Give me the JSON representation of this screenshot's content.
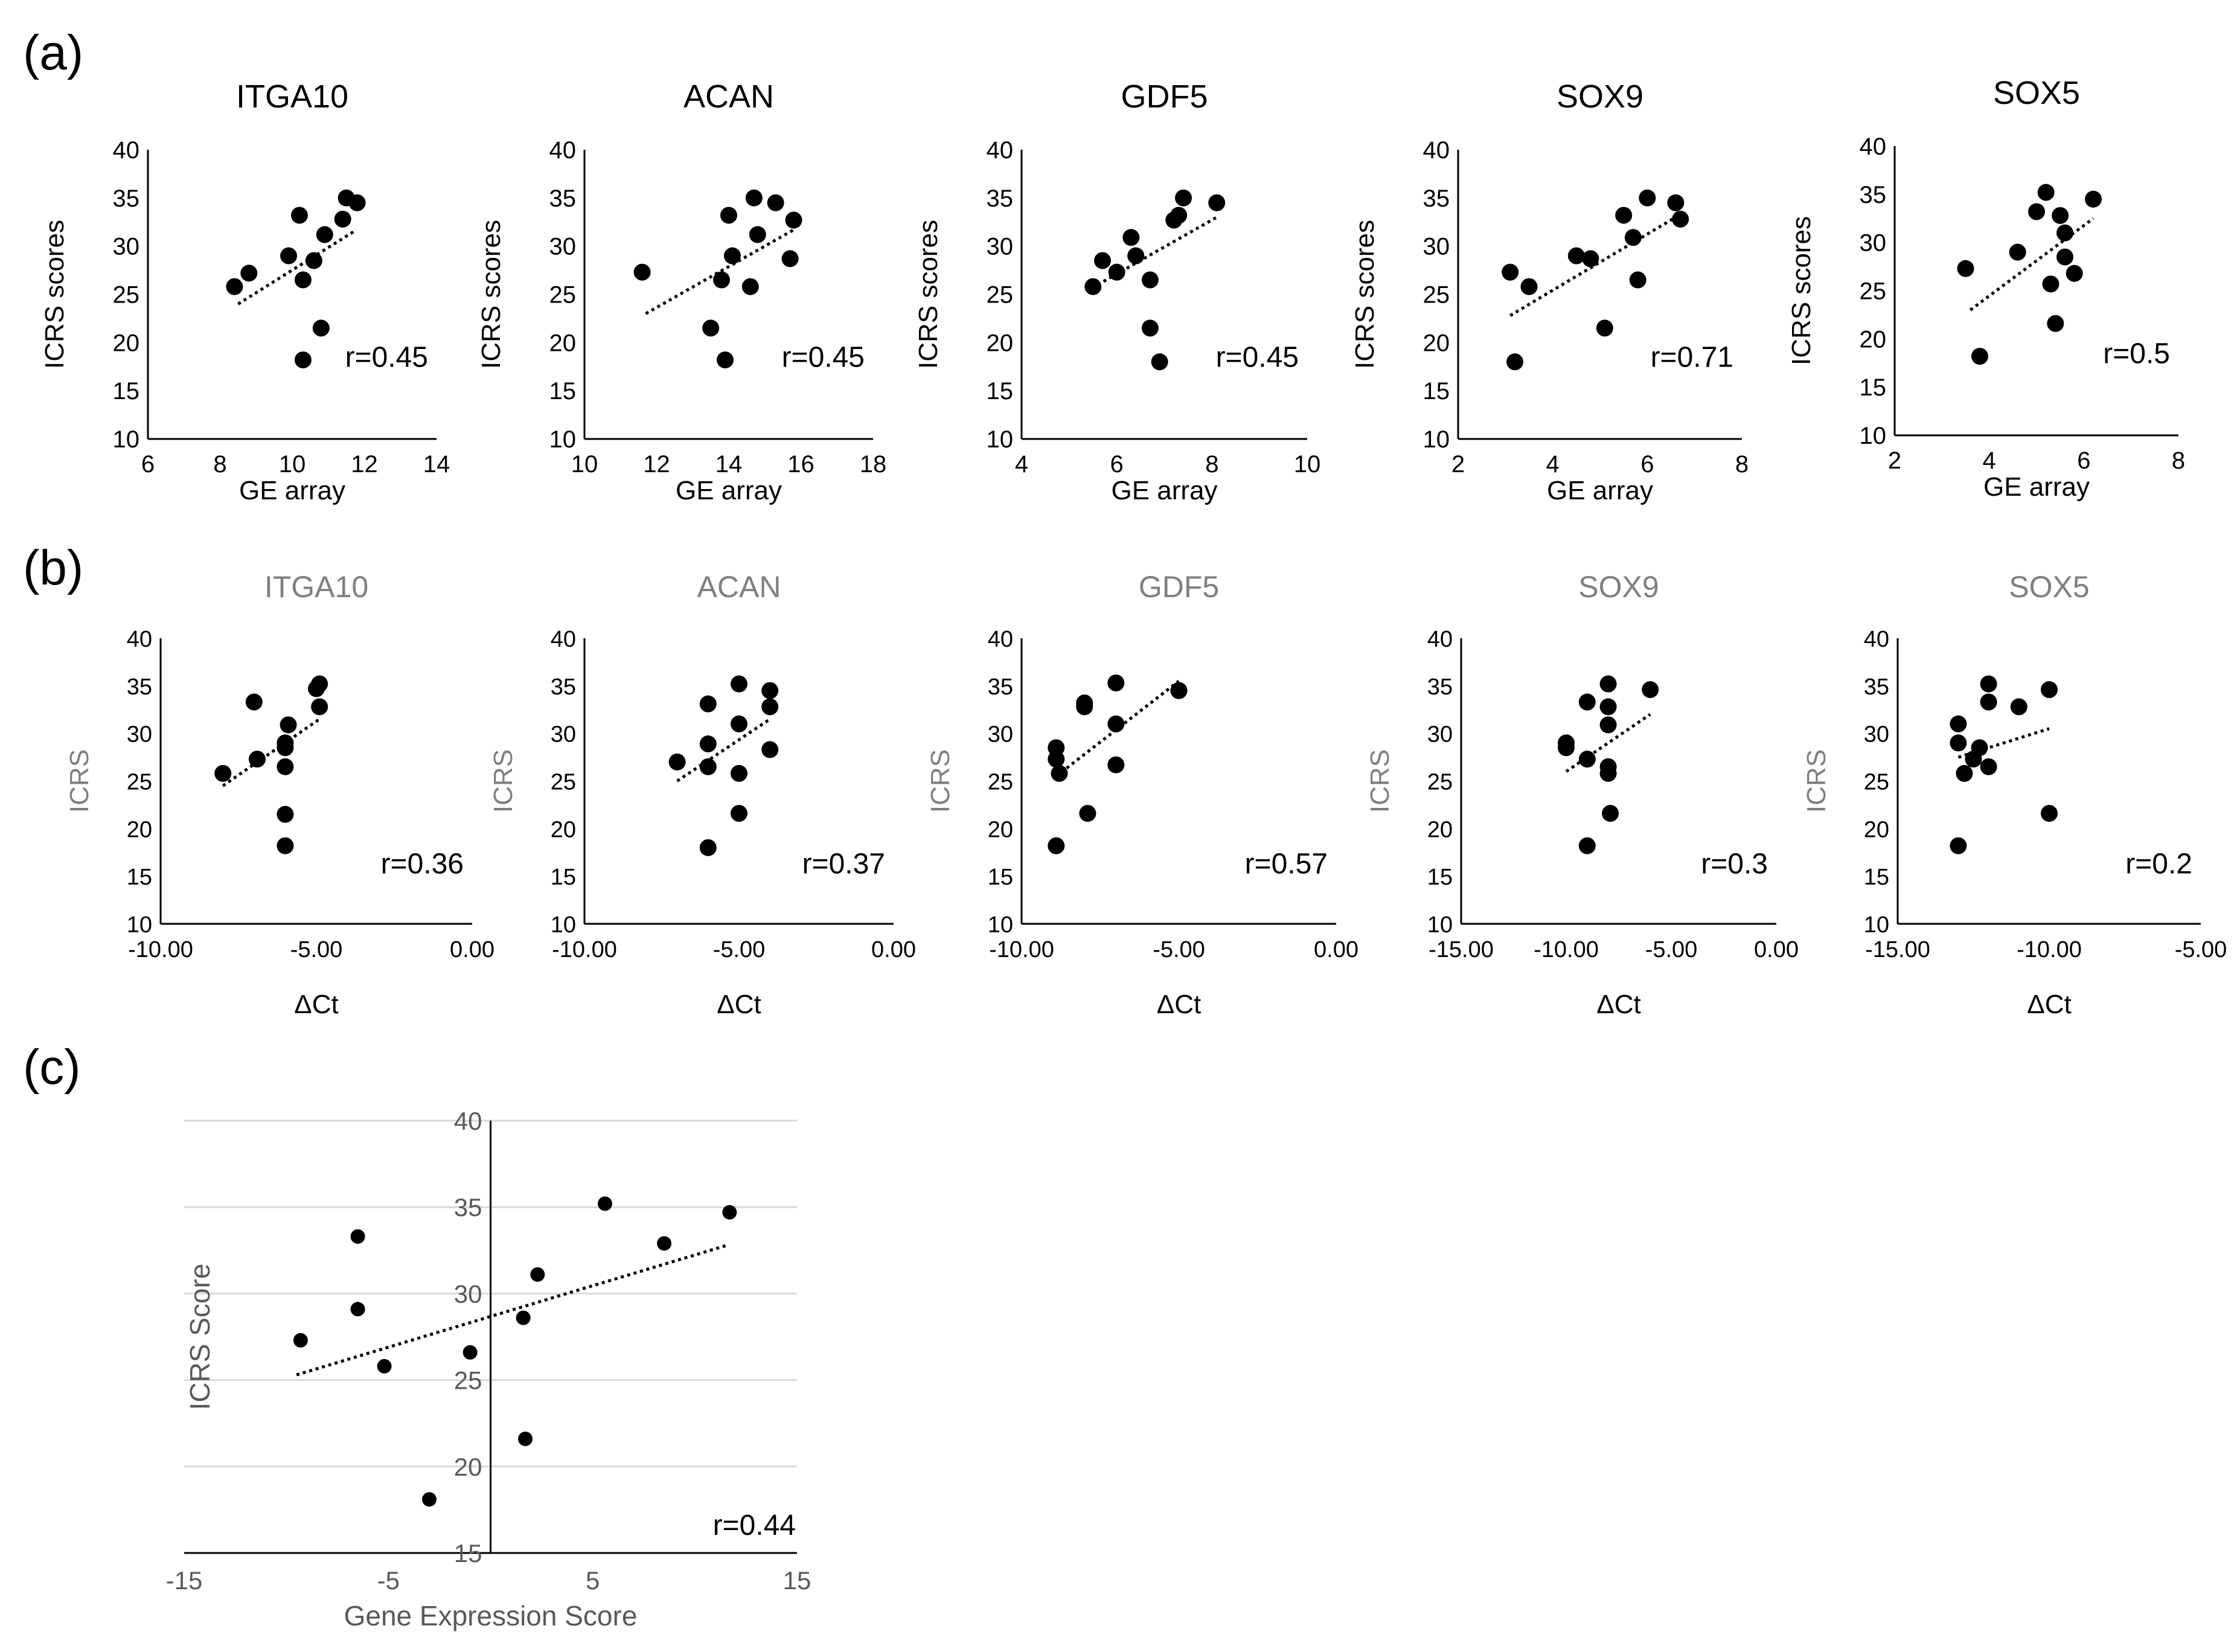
{
  "chart_data": [
    {
      "type": "scatter",
      "panel": "(a)",
      "title": "ITGA10",
      "xlabel": "GE array",
      "ylabel": "ICRS scores",
      "xlim": [
        6,
        14
      ],
      "ylim": [
        10,
        40
      ],
      "xticks": [
        "6",
        "8",
        "10",
        "12",
        "14"
      ],
      "yticks": [
        "10",
        "15",
        "20",
        "25",
        "30",
        "35",
        "40"
      ],
      "annotation": "r=0.45",
      "x": [
        8.4,
        8.8,
        10.2,
        10.3,
        9.9,
        10.6,
        10.9,
        11.4,
        11.5,
        11.8,
        10.8,
        10.3
      ],
      "y": [
        25.8,
        27.2,
        33.2,
        26.5,
        29.0,
        28.5,
        31.2,
        32.8,
        35.0,
        34.5,
        21.5,
        18.2
      ],
      "trend": [
        [
          8.5,
          24.0
        ],
        [
          11.7,
          31.5
        ]
      ]
    },
    {
      "type": "scatter",
      "panel": "(a)",
      "title": "ACAN",
      "xlabel": "GE array",
      "ylabel": "ICRS scores",
      "xlim": [
        10,
        18
      ],
      "ylim": [
        10,
        40
      ],
      "xticks": [
        "10",
        "12",
        "14",
        "16",
        "18"
      ],
      "yticks": [
        "10",
        "15",
        "20",
        "25",
        "30",
        "35",
        "40"
      ],
      "annotation": "r=0.45",
      "x": [
        11.6,
        13.5,
        13.8,
        14.0,
        14.1,
        14.6,
        14.7,
        14.8,
        15.3,
        15.7,
        15.8,
        13.9
      ],
      "y": [
        27.3,
        21.5,
        26.5,
        33.2,
        29.0,
        25.8,
        35.0,
        31.2,
        34.5,
        28.7,
        32.7,
        18.2
      ],
      "trend": [
        [
          11.7,
          23.0
        ],
        [
          15.8,
          31.7
        ]
      ]
    },
    {
      "type": "scatter",
      "panel": "(a)",
      "title": "GDF5",
      "xlabel": "GE array",
      "ylabel": "ICRS scores",
      "xlim": [
        4,
        10
      ],
      "ylim": [
        10,
        40
      ],
      "xticks": [
        "4",
        "6",
        "8",
        "10"
      ],
      "yticks": [
        "10",
        "15",
        "20",
        "25",
        "30",
        "35",
        "40"
      ],
      "annotation": "r=0.45",
      "x": [
        5.5,
        5.7,
        6.0,
        6.3,
        6.4,
        6.7,
        6.7,
        6.9,
        7.2,
        7.3,
        7.4,
        8.1
      ],
      "y": [
        25.8,
        28.5,
        27.3,
        30.9,
        29.0,
        26.5,
        21.5,
        18.0,
        32.7,
        33.2,
        35.0,
        34.5
      ],
      "trend": [
        [
          5.6,
          26.0
        ],
        [
          8.1,
          33.0
        ]
      ]
    },
    {
      "type": "scatter",
      "panel": "(a)",
      "title": "SOX9",
      "xlabel": "GE array",
      "ylabel": "ICRS scores",
      "xlim": [
        2,
        8
      ],
      "ylim": [
        10,
        40
      ],
      "xticks": [
        "2",
        "4",
        "6",
        "8"
      ],
      "yticks": [
        "10",
        "15",
        "20",
        "25",
        "30",
        "35",
        "40"
      ],
      "annotation": "r=0.71",
      "x": [
        3.1,
        3.2,
        3.5,
        4.5,
        4.8,
        5.1,
        5.5,
        5.7,
        5.8,
        6.0,
        6.6,
        6.7
      ],
      "y": [
        27.3,
        18.0,
        25.8,
        29.0,
        28.7,
        21.5,
        33.2,
        30.9,
        26.5,
        35.0,
        34.5,
        32.8
      ],
      "trend": [
        [
          3.1,
          22.8
        ],
        [
          6.6,
          33.0
        ]
      ]
    },
    {
      "type": "scatter",
      "panel": "(a)",
      "title": "SOX5",
      "xlabel": "GE array",
      "ylabel": "ICRS scores",
      "xlim": [
        2,
        8
      ],
      "ylim": [
        10,
        40
      ],
      "xticks": [
        "2",
        "4",
        "6",
        "8"
      ],
      "yticks": [
        "10",
        "15",
        "20",
        "25",
        "30",
        "35",
        "40"
      ],
      "annotation": "r=0.5",
      "x": [
        3.5,
        3.8,
        4.6,
        5.0,
        5.2,
        5.3,
        5.4,
        5.5,
        5.6,
        5.6,
        5.8,
        6.2
      ],
      "y": [
        27.3,
        18.2,
        29.0,
        33.2,
        35.2,
        25.7,
        21.6,
        32.8,
        31.0,
        28.5,
        26.8,
        34.5
      ],
      "trend": [
        [
          3.6,
          23.0
        ],
        [
          6.2,
          32.5
        ]
      ]
    },
    {
      "type": "scatter",
      "panel": "(b)",
      "title": "ITGA10",
      "xlabel": "ΔCt",
      "ylabel": "ICRS",
      "xlim": [
        -10,
        0
      ],
      "ylim": [
        10,
        40
      ],
      "xticks": [
        "-10.00",
        "-5.00",
        "0.00"
      ],
      "yticks": [
        "10",
        "15",
        "20",
        "25",
        "30",
        "35",
        "40"
      ],
      "annotation": "r=0.36",
      "x": [
        -8.0,
        -6.9,
        -7.0,
        -6.0,
        -6.0,
        -6.0,
        -5.9,
        -6.0,
        -6.0,
        -5.0,
        -4.9,
        -4.9
      ],
      "y": [
        25.8,
        27.3,
        33.3,
        28.5,
        29.0,
        26.5,
        30.9,
        21.5,
        18.2,
        34.7,
        35.2,
        32.8
      ],
      "trend": [
        [
          -8.0,
          24.5
        ],
        [
          -4.9,
          31.5
        ]
      ]
    },
    {
      "type": "scatter",
      "panel": "(b)",
      "title": "ACAN",
      "xlabel": "ΔCt",
      "ylabel": "ICRS",
      "xlim": [
        -10,
        0
      ],
      "ylim": [
        10,
        40
      ],
      "xticks": [
        "-10.00",
        "-5.00",
        "0.00"
      ],
      "yticks": [
        "10",
        "15",
        "20",
        "25",
        "30",
        "35",
        "40"
      ],
      "annotation": "r=0.37",
      "x": [
        -7.0,
        -6.0,
        -6.0,
        -6.0,
        -6.0,
        -5.0,
        -5.0,
        -5.0,
        -5.0,
        -4.0,
        -4.0,
        -4.0
      ],
      "y": [
        27.0,
        33.1,
        28.9,
        26.5,
        18.0,
        35.2,
        31.0,
        25.8,
        21.6,
        34.5,
        32.8,
        28.3
      ],
      "trend": [
        [
          -7.0,
          25.0
        ],
        [
          -4.0,
          31.5
        ]
      ]
    },
    {
      "type": "scatter",
      "panel": "(b)",
      "title": "GDF5",
      "xlabel": "ΔCt",
      "ylabel": "ICRS",
      "xlim": [
        -10,
        0
      ],
      "ylim": [
        10,
        40
      ],
      "xticks": [
        "-10.00",
        "-5.00",
        "0.00"
      ],
      "yticks": [
        "10",
        "15",
        "20",
        "25",
        "30",
        "35",
        "40"
      ],
      "annotation": "r=0.57",
      "x": [
        -8.9,
        -8.9,
        -8.8,
        -8.9,
        -8.0,
        -8.0,
        -7.9,
        -7.0,
        -7.0,
        -7.0,
        -5.0,
        -5.0
      ],
      "y": [
        28.5,
        27.3,
        25.8,
        18.2,
        33.2,
        32.8,
        21.6,
        35.3,
        31.0,
        26.7,
        34.5,
        34.5
      ],
      "trend": [
        [
          -8.9,
          25.5
        ],
        [
          -5.0,
          35.5
        ]
      ]
    },
    {
      "type": "scatter",
      "panel": "(b)",
      "title": "SOX9",
      "xlabel": "ΔCt",
      "ylabel": "ICRS",
      "xlim": [
        -15,
        0
      ],
      "ylim": [
        10,
        40
      ],
      "xticks": [
        "-15.00",
        "-10.00",
        "-5.00",
        "0.00"
      ],
      "yticks": [
        "10",
        "15",
        "20",
        "25",
        "30",
        "35",
        "40"
      ],
      "annotation": "r=0.3",
      "x": [
        -10.0,
        -10.0,
        -9.0,
        -9.0,
        -9.0,
        -8.0,
        -8.0,
        -8.0,
        -8.0,
        -8.0,
        -7.9,
        -6.0
      ],
      "y": [
        29.0,
        28.5,
        33.3,
        27.3,
        18.2,
        35.2,
        32.8,
        30.9,
        26.5,
        25.8,
        21.6,
        34.6
      ],
      "trend": [
        [
          -10.0,
          26.0
        ],
        [
          -6.0,
          32.0
        ]
      ]
    },
    {
      "type": "scatter",
      "panel": "(b)",
      "title": "SOX5",
      "xlabel": "ΔCt",
      "ylabel": "ICRS",
      "xlim": [
        -15,
        -5
      ],
      "ylim": [
        10,
        40
      ],
      "xticks": [
        "-15.00",
        "-10.00",
        "-5.00"
      ],
      "yticks": [
        "10",
        "15",
        "20",
        "25",
        "30",
        "35",
        "40"
      ],
      "annotation": "r=0.2",
      "x": [
        -13.0,
        -13.0,
        -12.8,
        -12.5,
        -12.3,
        -12.0,
        -12.0,
        -12.0,
        -11.0,
        -10.0,
        -10.0,
        -13.0
      ],
      "y": [
        29.0,
        31.0,
        25.8,
        27.3,
        28.5,
        35.2,
        33.3,
        26.5,
        32.8,
        34.6,
        21.6,
        18.2
      ],
      "trend": [
        [
          -13.0,
          27.5
        ],
        [
          -10.0,
          30.5
        ]
      ]
    },
    {
      "type": "scatter",
      "panel": "(c)",
      "title": "",
      "xlabel": "Gene Expression Score",
      "ylabel": "ICRS Score",
      "xlim": [
        -15,
        15
      ],
      "ylim": [
        15,
        40
      ],
      "xticks": [
        "-15",
        "-5",
        "5",
        "15"
      ],
      "yticks": [
        "15",
        "20",
        "25",
        "30",
        "35",
        "40"
      ],
      "annotation": "r=0.44",
      "x": [
        -9.3,
        -6.5,
        -6.5,
        -5.2,
        -3.0,
        -1.0,
        1.7,
        1.6,
        2.3,
        5.6,
        8.5,
        11.7
      ],
      "y": [
        27.3,
        33.3,
        29.1,
        25.8,
        18.1,
        26.6,
        21.6,
        28.6,
        31.1,
        35.2,
        32.9,
        34.7
      ],
      "trend": [
        [
          -9.5,
          25.3
        ],
        [
          11.6,
          32.8
        ]
      ]
    }
  ],
  "panel_labels": [
    "(a)",
    "(b)",
    "(c)"
  ]
}
